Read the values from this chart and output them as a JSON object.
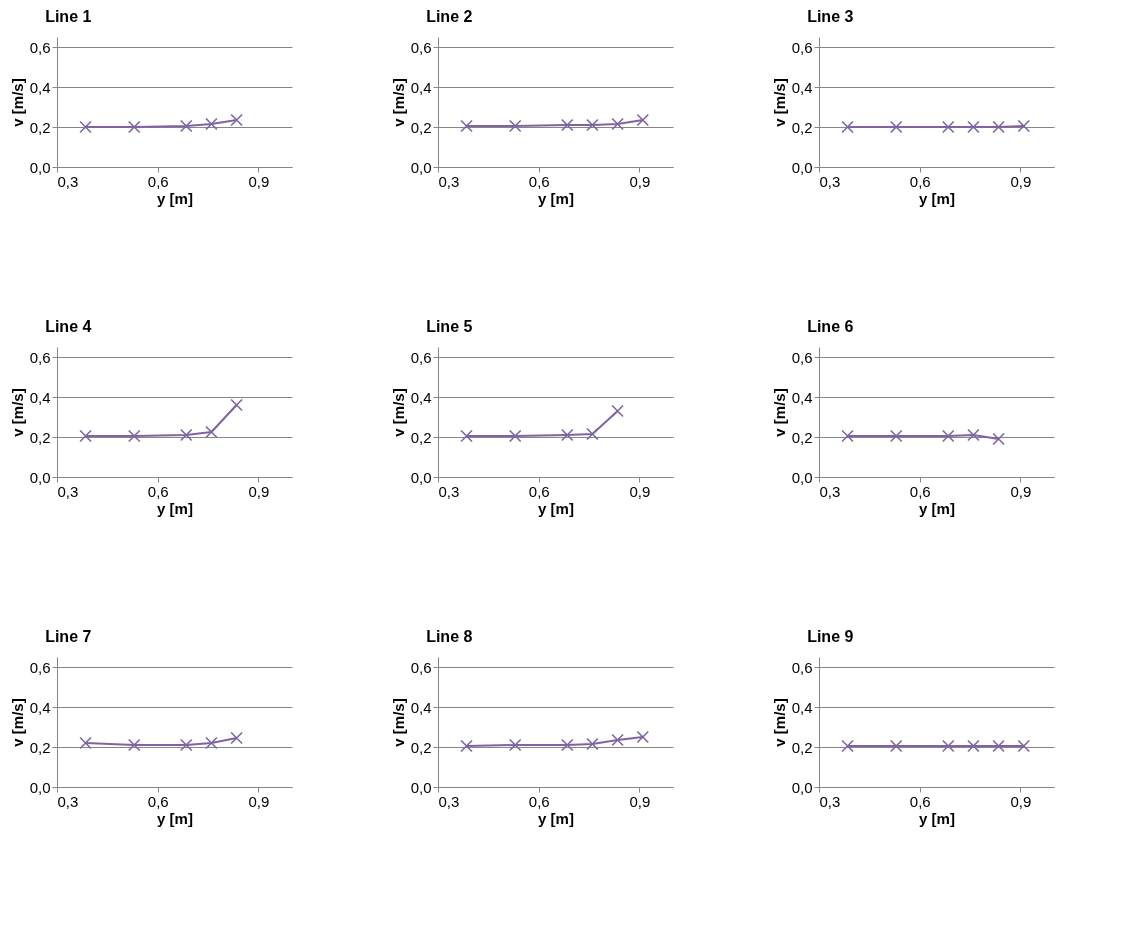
{
  "chart_data": [
    {
      "type": "line",
      "title": "Line 1",
      "xlabel": "y [m]",
      "ylabel": "v [m/s]",
      "x": [
        0.385,
        0.53,
        0.685,
        0.76,
        0.835
      ],
      "values": [
        0.2,
        0.2,
        0.205,
        0.215,
        0.235
      ],
      "color": "#8064a2",
      "marker": "cross",
      "xlim": [
        0.3,
        1.0
      ],
      "ylim": [
        0,
        0.65
      ],
      "xticks": [
        {
          "value": 0.3,
          "label": "0,3"
        },
        {
          "value": 0.6,
          "label": "0,6"
        },
        {
          "value": 0.9,
          "label": "0,9"
        }
      ],
      "yticks": [
        {
          "value": 0,
          "label": "0,0"
        },
        {
          "value": 0.2,
          "label": "0,2"
        },
        {
          "value": 0.4,
          "label": "0,4"
        },
        {
          "value": 0.6,
          "label": "0,6"
        }
      ],
      "grid": "y"
    },
    {
      "type": "line",
      "title": "Line 2",
      "xlabel": "y [m]",
      "ylabel": "v [m/s]",
      "x": [
        0.385,
        0.53,
        0.685,
        0.76,
        0.835,
        0.91
      ],
      "values": [
        0.205,
        0.205,
        0.21,
        0.21,
        0.215,
        0.235
      ],
      "color": "#8064a2",
      "marker": "cross",
      "xlim": [
        0.3,
        1.0
      ],
      "ylim": [
        0,
        0.65
      ],
      "xticks": [
        {
          "value": 0.3,
          "label": "0,3"
        },
        {
          "value": 0.6,
          "label": "0,6"
        },
        {
          "value": 0.9,
          "label": "0,9"
        }
      ],
      "yticks": [
        {
          "value": 0,
          "label": "0,0"
        },
        {
          "value": 0.2,
          "label": "0,2"
        },
        {
          "value": 0.4,
          "label": "0,4"
        },
        {
          "value": 0.6,
          "label": "0,6"
        }
      ],
      "grid": "y"
    },
    {
      "type": "line",
      "title": "Line 3",
      "xlabel": "y [m]",
      "ylabel": "v [m/s]",
      "x": [
        0.385,
        0.53,
        0.685,
        0.76,
        0.835,
        0.91
      ],
      "values": [
        0.2,
        0.2,
        0.2,
        0.2,
        0.2,
        0.205
      ],
      "color": "#8064a2",
      "marker": "cross",
      "xlim": [
        0.3,
        1.0
      ],
      "ylim": [
        0,
        0.65
      ],
      "xticks": [
        {
          "value": 0.3,
          "label": "0,3"
        },
        {
          "value": 0.6,
          "label": "0,6"
        },
        {
          "value": 0.9,
          "label": "0,9"
        }
      ],
      "yticks": [
        {
          "value": 0,
          "label": "0,0"
        },
        {
          "value": 0.2,
          "label": "0,2"
        },
        {
          "value": 0.4,
          "label": "0,4"
        },
        {
          "value": 0.6,
          "label": "0,6"
        }
      ],
      "grid": "y"
    },
    {
      "type": "line",
      "title": "Line 4",
      "xlabel": "y [m]",
      "ylabel": "v [m/s]",
      "x": [
        0.385,
        0.53,
        0.685,
        0.76,
        0.835
      ],
      "values": [
        0.205,
        0.205,
        0.21,
        0.225,
        0.36
      ],
      "color": "#8064a2",
      "marker": "cross",
      "xlim": [
        0.3,
        1.0
      ],
      "ylim": [
        0,
        0.65
      ],
      "xticks": [
        {
          "value": 0.3,
          "label": "0,3"
        },
        {
          "value": 0.6,
          "label": "0,6"
        },
        {
          "value": 0.9,
          "label": "0,9"
        }
      ],
      "yticks": [
        {
          "value": 0,
          "label": "0,0"
        },
        {
          "value": 0.2,
          "label": "0,2"
        },
        {
          "value": 0.4,
          "label": "0,4"
        },
        {
          "value": 0.6,
          "label": "0,6"
        }
      ],
      "grid": "y"
    },
    {
      "type": "line",
      "title": "Line 5",
      "xlabel": "y [m]",
      "ylabel": "v [m/s]",
      "x": [
        0.385,
        0.53,
        0.685,
        0.76,
        0.835
      ],
      "values": [
        0.205,
        0.205,
        0.21,
        0.215,
        0.33
      ],
      "color": "#8064a2",
      "marker": "cross",
      "xlim": [
        0.3,
        1.0
      ],
      "ylim": [
        0,
        0.65
      ],
      "xticks": [
        {
          "value": 0.3,
          "label": "0,3"
        },
        {
          "value": 0.6,
          "label": "0,6"
        },
        {
          "value": 0.9,
          "label": "0,9"
        }
      ],
      "yticks": [
        {
          "value": 0,
          "label": "0,0"
        },
        {
          "value": 0.2,
          "label": "0,2"
        },
        {
          "value": 0.4,
          "label": "0,4"
        },
        {
          "value": 0.6,
          "label": "0,6"
        }
      ],
      "grid": "y"
    },
    {
      "type": "line",
      "title": "Line 6",
      "xlabel": "y [m]",
      "ylabel": "v [m/s]",
      "x": [
        0.385,
        0.53,
        0.685,
        0.76,
        0.835
      ],
      "values": [
        0.205,
        0.205,
        0.205,
        0.21,
        0.19
      ],
      "color": "#8064a2",
      "marker": "cross",
      "xlim": [
        0.3,
        1.0
      ],
      "ylim": [
        0,
        0.65
      ],
      "xticks": [
        {
          "value": 0.3,
          "label": "0,3"
        },
        {
          "value": 0.6,
          "label": "0,6"
        },
        {
          "value": 0.9,
          "label": "0,9"
        }
      ],
      "yticks": [
        {
          "value": 0,
          "label": "0,0"
        },
        {
          "value": 0.2,
          "label": "0,2"
        },
        {
          "value": 0.4,
          "label": "0,4"
        },
        {
          "value": 0.6,
          "label": "0,6"
        }
      ],
      "grid": "y"
    },
    {
      "type": "line",
      "title": "Line 7",
      "xlabel": "y [m]",
      "ylabel": "v [m/s]",
      "x": [
        0.385,
        0.53,
        0.685,
        0.76,
        0.835
      ],
      "values": [
        0.22,
        0.21,
        0.21,
        0.22,
        0.245
      ],
      "color": "#8064a2",
      "marker": "cross",
      "xlim": [
        0.3,
        1.0
      ],
      "ylim": [
        0,
        0.65
      ],
      "xticks": [
        {
          "value": 0.3,
          "label": "0,3"
        },
        {
          "value": 0.6,
          "label": "0,6"
        },
        {
          "value": 0.9,
          "label": "0,9"
        }
      ],
      "yticks": [
        {
          "value": 0,
          "label": "0,0"
        },
        {
          "value": 0.2,
          "label": "0,2"
        },
        {
          "value": 0.4,
          "label": "0,4"
        },
        {
          "value": 0.6,
          "label": "0,6"
        }
      ],
      "grid": "y"
    },
    {
      "type": "line",
      "title": "Line 8",
      "xlabel": "y [m]",
      "ylabel": "v [m/s]",
      "x": [
        0.385,
        0.53,
        0.685,
        0.76,
        0.835,
        0.91
      ],
      "values": [
        0.205,
        0.21,
        0.21,
        0.215,
        0.235,
        0.25
      ],
      "color": "#8064a2",
      "marker": "cross",
      "xlim": [
        0.3,
        1.0
      ],
      "ylim": [
        0,
        0.65
      ],
      "xticks": [
        {
          "value": 0.3,
          "label": "0,3"
        },
        {
          "value": 0.6,
          "label": "0,6"
        },
        {
          "value": 0.9,
          "label": "0,9"
        }
      ],
      "yticks": [
        {
          "value": 0,
          "label": "0,0"
        },
        {
          "value": 0.2,
          "label": "0,2"
        },
        {
          "value": 0.4,
          "label": "0,4"
        },
        {
          "value": 0.6,
          "label": "0,6"
        }
      ],
      "grid": "y"
    },
    {
      "type": "line",
      "title": "Line 9",
      "xlabel": "y [m]",
      "ylabel": "v [m/s]",
      "x": [
        0.385,
        0.53,
        0.685,
        0.76,
        0.835,
        0.91
      ],
      "values": [
        0.205,
        0.205,
        0.205,
        0.205,
        0.205,
        0.205
      ],
      "color": "#8064a2",
      "marker": "cross",
      "xlim": [
        0.3,
        1.0
      ],
      "ylim": [
        0,
        0.65
      ],
      "xticks": [
        {
          "value": 0.3,
          "label": "0,3"
        },
        {
          "value": 0.6,
          "label": "0,6"
        },
        {
          "value": 0.9,
          "label": "0,9"
        }
      ],
      "yticks": [
        {
          "value": 0,
          "label": "0,0"
        },
        {
          "value": 0.2,
          "label": "0,2"
        },
        {
          "value": 0.4,
          "label": "0,4"
        },
        {
          "value": 0.6,
          "label": "0,6"
        }
      ],
      "grid": "y"
    }
  ]
}
